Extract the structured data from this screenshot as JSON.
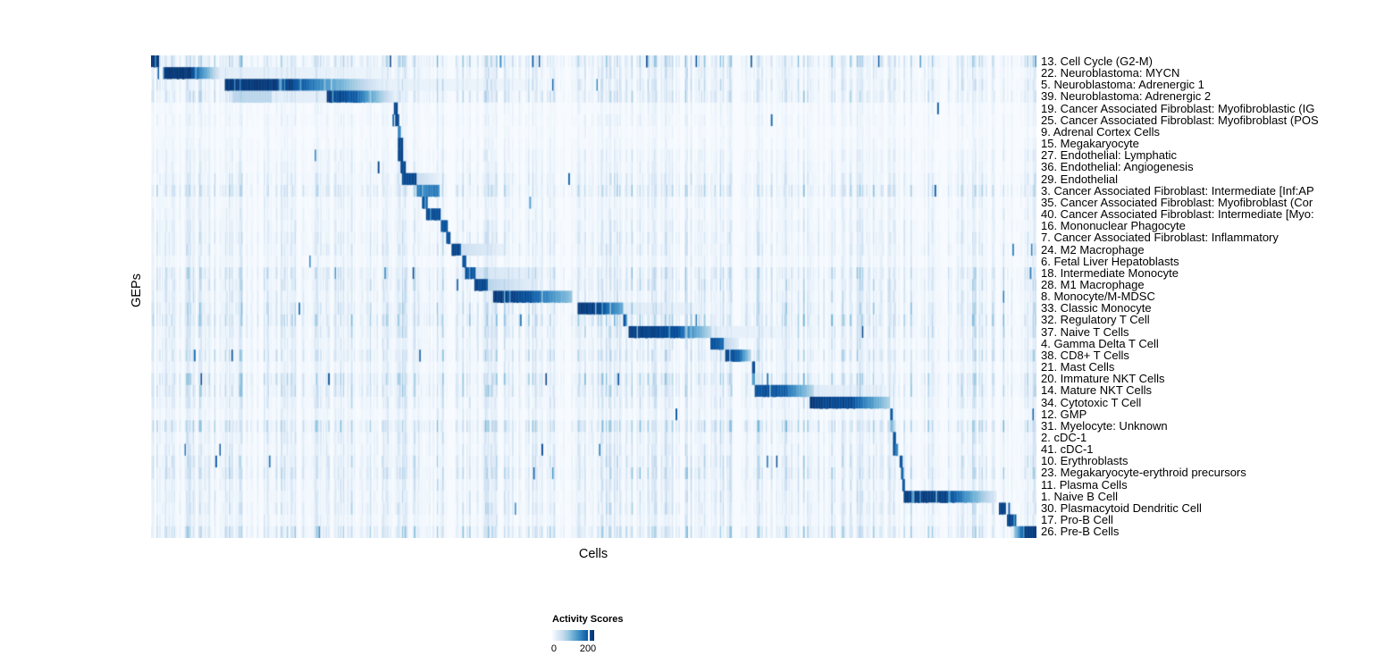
{
  "chart_data": {
    "type": "heatmap",
    "title": "",
    "xlabel": "Cells",
    "ylabel": "GEPs",
    "grid": false,
    "legend_position": "bottom-left",
    "colorbar": {
      "title": "Activity Scores",
      "tick_labels": [
        "0",
        "200"
      ],
      "tick_values": [
        0,
        200
      ],
      "range_max_value": 235,
      "colormap": [
        "#f7fbff",
        "#deebf7",
        "#c6dbef",
        "#9ecae1",
        "#6baed6",
        "#4292c6",
        "#2171b5",
        "#08519c",
        "#08306b"
      ]
    },
    "rows": [
      {
        "label": "13. Cell Cycle (G2-M)",
        "noise": 0.5,
        "speck": 0.025,
        "segments": [
          [
            0.0,
            0.0085,
            1,
            1
          ]
        ]
      },
      {
        "label": "22. Neuroblastoma: MYCN",
        "noise": 0.3,
        "speck": 0.0015,
        "segments": [
          [
            0.014,
            0.044,
            1,
            1
          ],
          [
            0.044,
            0.078,
            1,
            0.12
          ],
          [
            0.078,
            0.27,
            0.1,
            0.05
          ]
        ]
      },
      {
        "label": "5. Neuroblastoma: Adrenergic 1",
        "noise": 0.35,
        "speck": 0.0015,
        "segments": [
          [
            0.084,
            0.152,
            1,
            1
          ],
          [
            0.152,
            0.263,
            1,
            0.08
          ],
          [
            0.263,
            0.43,
            0.08,
            0.04
          ]
        ]
      },
      {
        "label": "39. Neuroblastoma: Adrenergic 2",
        "noise": 0.4,
        "speck": 0.0015,
        "segments": [
          [
            0.092,
            0.137,
            0.28,
            0.28
          ],
          [
            0.137,
            0.198,
            0.1,
            0.1
          ],
          [
            0.198,
            0.233,
            1,
            0.85
          ],
          [
            0.233,
            0.277,
            0.8,
            0.07
          ]
        ]
      },
      {
        "label": "19. Cancer Associated Fibroblast: Myofibroblastic (IG",
        "noise": 0.12,
        "speck": 0.0015,
        "segments": [
          [
            0.2745,
            0.2785,
            0.95,
            0.95
          ]
        ]
      },
      {
        "label": "25. Cancer Associated Fibroblast: Myofibroblast (POS",
        "noise": 0.15,
        "speck": 0.0015,
        "segments": [
          [
            0.276,
            0.281,
            0.95,
            0.95
          ]
        ]
      },
      {
        "label": "9. Adrenal Cortex Cells",
        "noise": 0.1,
        "speck": 0.001,
        "segments": [
          [
            0.2785,
            0.2815,
            0.7,
            0.7
          ]
        ]
      },
      {
        "label": "15. Megakaryocyte",
        "noise": 0.12,
        "speck": 0.001,
        "segments": [
          [
            0.2795,
            0.2845,
            0.95,
            0.95
          ]
        ]
      },
      {
        "label": "27. Endothelial: Lymphatic",
        "noise": 0.2,
        "speck": 0.0015,
        "segments": [
          [
            0.2795,
            0.2855,
            0.95,
            0.95
          ]
        ]
      },
      {
        "label": "36. Endothelial: Angiogenesis",
        "noise": 0.2,
        "speck": 0.0015,
        "segments": [
          [
            0.2815,
            0.2875,
            0.95,
            0.95
          ]
        ]
      },
      {
        "label": "29. Endothelial",
        "noise": 0.3,
        "speck": 0.0015,
        "segments": [
          [
            0.2835,
            0.2995,
            0.95,
            0.95
          ],
          [
            0.2995,
            0.325,
            0.25,
            0.08
          ]
        ]
      },
      {
        "label": "3. Cancer Associated Fibroblast: Intermediate [Inf:AP",
        "noise": 0.45,
        "speck": 0.004,
        "segments": [
          [
            0.3005,
            0.326,
            0.72,
            0.72
          ]
        ]
      },
      {
        "label": "35. Cancer Associated Fibroblast: Myofibroblast (Cor",
        "noise": 0.2,
        "speck": 0.0015,
        "segments": [
          [
            0.3055,
            0.3115,
            0.9,
            0.9
          ]
        ]
      },
      {
        "label": "40. Cancer Associated Fibroblast: Intermediate [Myo:",
        "noise": 0.2,
        "speck": 0.0015,
        "segments": [
          [
            0.3105,
            0.327,
            0.95,
            0.95
          ]
        ]
      },
      {
        "label": "16. Mononuclear Phagocyte",
        "noise": 0.25,
        "speck": 0.0015,
        "segments": [
          [
            0.328,
            0.335,
            0.9,
            0.9
          ]
        ]
      },
      {
        "label": "7. Cancer Associated Fibroblast: Inflammatory",
        "noise": 0.3,
        "speck": 0.0015,
        "segments": [
          [
            0.334,
            0.338,
            0.9,
            0.9
          ]
        ]
      },
      {
        "label": "24. M2 Macrophage",
        "noise": 0.3,
        "speck": 0.0015,
        "segments": [
          [
            0.339,
            0.35,
            0.95,
            0.95
          ],
          [
            0.35,
            0.4,
            0.22,
            0.07
          ]
        ]
      },
      {
        "label": "6. Fetal Liver Hepatoblasts",
        "noise": 0.2,
        "speck": 0.0015,
        "segments": [
          [
            0.352,
            0.3555,
            0.9,
            0.9
          ]
        ]
      },
      {
        "label": "18. Intermediate Monocyte",
        "noise": 0.45,
        "speck": 0.004,
        "segments": [
          [
            0.354,
            0.366,
            0.9,
            0.9
          ],
          [
            0.366,
            0.44,
            0.18,
            0.07
          ]
        ]
      },
      {
        "label": "28. M1 Macrophage",
        "noise": 0.4,
        "speck": 0.0015,
        "segments": [
          [
            0.365,
            0.38,
            0.95,
            0.95
          ],
          [
            0.38,
            0.435,
            0.3,
            0.08
          ]
        ]
      },
      {
        "label": "8. Monocyte/M-MDSC",
        "noise": 0.35,
        "speck": 0.0015,
        "segments": [
          [
            0.386,
            0.428,
            1,
            0.92
          ],
          [
            0.428,
            0.475,
            0.9,
            0.4
          ]
        ]
      },
      {
        "label": "33. Classic Monocyte",
        "noise": 0.45,
        "speck": 0.004,
        "segments": [
          [
            0.482,
            0.508,
            1,
            0.95
          ],
          [
            0.508,
            0.534,
            0.95,
            0.5
          ],
          [
            0.534,
            0.62,
            0.12,
            0.06
          ]
        ]
      },
      {
        "label": "32. Regulatory T Cell",
        "noise": 0.55,
        "speck": 0.004,
        "segments": [
          [
            0.534,
            0.538,
            0.9,
            0.9
          ]
        ]
      },
      {
        "label": "37. Naive T Cells",
        "noise": 0.4,
        "speck": 0.0015,
        "segments": [
          [
            0.539,
            0.597,
            1,
            0.9
          ],
          [
            0.597,
            0.634,
            0.85,
            0.25
          ],
          [
            0.634,
            0.72,
            0.1,
            0.05
          ]
        ]
      },
      {
        "label": "4. Gamma Delta T Cell",
        "noise": 0.3,
        "speck": 0.0015,
        "segments": [
          [
            0.632,
            0.647,
            0.95,
            0.8
          ],
          [
            0.647,
            0.664,
            0.3,
            0.1
          ]
        ]
      },
      {
        "label": "38. CD8+ T Cells",
        "noise": 0.45,
        "speck": 0.004,
        "segments": [
          [
            0.649,
            0.665,
            0.95,
            0.85
          ],
          [
            0.665,
            0.677,
            0.8,
            0.3
          ]
        ]
      },
      {
        "label": "21. Mast Cells",
        "noise": 0.25,
        "speck": 0.0015,
        "segments": [
          [
            0.679,
            0.6825,
            0.95,
            0.95
          ]
        ]
      },
      {
        "label": "20. Immature NKT Cells",
        "noise": 0.5,
        "speck": 0.004,
        "segments": [
          [
            0.679,
            0.6825,
            0.6,
            0.6
          ]
        ]
      },
      {
        "label": "14. Mature NKT Cells",
        "noise": 0.45,
        "speck": 0.004,
        "segments": [
          [
            0.682,
            0.7175,
            0.92,
            0.85
          ],
          [
            0.7175,
            0.748,
            0.8,
            0.3
          ],
          [
            0.748,
            0.83,
            0.12,
            0.06
          ]
        ]
      },
      {
        "label": "34. Cytotoxic T Cell",
        "noise": 0.3,
        "speck": 0.0015,
        "segments": [
          [
            0.7445,
            0.793,
            1,
            0.92
          ],
          [
            0.793,
            0.8355,
            0.9,
            0.3
          ]
        ]
      },
      {
        "label": "12. GMP",
        "noise": 0.2,
        "speck": 0.0015,
        "segments": [
          [
            0.8355,
            0.8375,
            0.9,
            0.9
          ]
        ]
      },
      {
        "label": "31. Myelocyte: Unknown",
        "noise": 0.55,
        "speck": 0.004,
        "segments": [
          [
            0.8355,
            0.8385,
            0.45,
            0.45
          ]
        ]
      },
      {
        "label": "2. cDC-1",
        "noise": 0.3,
        "speck": 0.0015,
        "segments": [
          [
            0.8375,
            0.8415,
            0.92,
            0.92
          ]
        ]
      },
      {
        "label": "41. cDC-1",
        "noise": 0.3,
        "speck": 0.0015,
        "segments": [
          [
            0.8385,
            0.8435,
            0.92,
            0.6
          ]
        ]
      },
      {
        "label": "10. Erythroblasts",
        "noise": 0.4,
        "speck": 0.0015,
        "segments": [
          [
            0.8455,
            0.8485,
            0.92,
            0.92
          ]
        ]
      },
      {
        "label": "23. Megakaryocyte-erythroid precursors",
        "noise": 0.45,
        "speck": 0.004,
        "segments": [
          [
            0.8465,
            0.8505,
            0.85,
            0.85
          ]
        ]
      },
      {
        "label": "11. Plasma Cells",
        "noise": 0.3,
        "speck": 0.0015,
        "segments": [
          [
            0.8485,
            0.8515,
            0.9,
            0.9
          ]
        ]
      },
      {
        "label": "1. Naive B Cell",
        "noise": 0.3,
        "speck": 0.0015,
        "segments": [
          [
            0.85,
            0.904,
            1,
            0.95
          ],
          [
            0.904,
            0.9545,
            0.9,
            0.12
          ]
        ]
      },
      {
        "label": "30. Plasmacytoid Dendritic Cell",
        "noise": 0.35,
        "speck": 0.0015,
        "segments": [
          [
            0.9575,
            0.9655,
            0.95,
            0.95
          ]
        ]
      },
      {
        "label": "17. Pro-B Cell",
        "noise": 0.25,
        "speck": 0.0015,
        "segments": [
          [
            0.9665,
            0.978,
            0.95,
            0.95
          ]
        ]
      },
      {
        "label": "26. Pre-B Cells",
        "noise": 0.5,
        "speck": 0.004,
        "segments": [
          [
            0.974,
            0.985,
            0.3,
            0.9
          ],
          [
            0.985,
            1.0,
            1,
            1
          ]
        ]
      }
    ]
  }
}
